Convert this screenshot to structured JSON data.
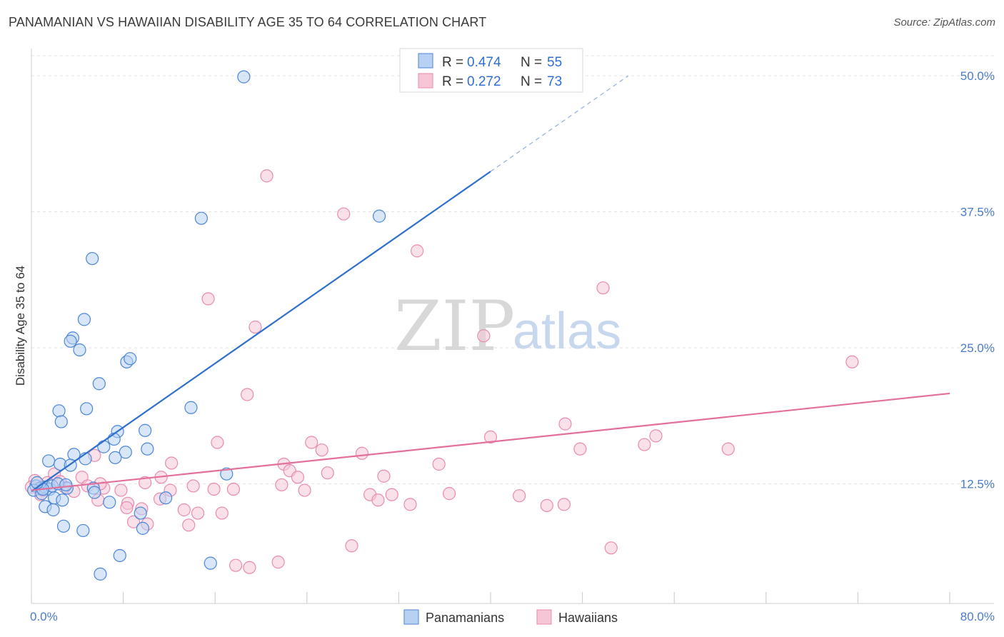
{
  "header": {
    "title": "PANAMANIAN VS HAWAIIAN DISABILITY AGE 35 TO 64 CORRELATION CHART",
    "source": "Source: ZipAtlas.com"
  },
  "watermark": {
    "zip": "ZIP",
    "atlas": "atlas"
  },
  "colors": {
    "blue": "#4a86d8",
    "blue_fill": "#b8d1f2",
    "blue_line": "#2f6fcc",
    "pink": "#e98ab0",
    "pink_fill": "#f6c6d6",
    "pink_line": "#e36f9b",
    "grid": "#e2e2e2",
    "axis_text": "#4a7cc9"
  },
  "legend": {
    "rows": [
      {
        "r_label": "R =",
        "r_value": "0.474",
        "n_label": "N =",
        "n_value": "55"
      },
      {
        "r_label": "R =",
        "r_value": "0.272",
        "n_label": "N =",
        "n_value": "73"
      }
    ]
  },
  "bottom_legend": {
    "series1": "Panamanians",
    "series2": "Hawaiians"
  },
  "chart_data": {
    "type": "scatter",
    "title": "PANAMANIAN VS HAWAIIAN DISABILITY AGE 35 TO 64 CORRELATION CHART",
    "xlabel": "",
    "ylabel": "Disability Age 35 to 64",
    "xlim": [
      0,
      80
    ],
    "ylim": [
      1.5,
      52.5
    ],
    "x_tick_labels": [
      "0.0%",
      "80.0%"
    ],
    "x_minor_ticks": [
      0,
      8,
      16,
      24,
      32,
      40,
      48,
      56,
      64,
      72,
      80
    ],
    "y_ticks": [
      12.5,
      25.0,
      37.5,
      50.0
    ],
    "y_tick_labels": [
      "12.5%",
      "25.0%",
      "37.5%",
      "50.0%"
    ],
    "grid": true,
    "series": [
      {
        "name": "Panamanians",
        "R": 0.474,
        "N": 55,
        "trend": {
          "x0": 0,
          "y0": 11.8,
          "x1": 40,
          "y1": 41.2,
          "dash_to_x": 52,
          "dash_to_y": 50.0
        },
        "points": [
          [
            18.5,
            49.9
          ],
          [
            14.8,
            36.9
          ],
          [
            30.3,
            37.1
          ],
          [
            5.3,
            33.2
          ],
          [
            4.6,
            27.6
          ],
          [
            3.6,
            25.9
          ],
          [
            3.4,
            25.6
          ],
          [
            4.2,
            24.8
          ],
          [
            8.3,
            23.7
          ],
          [
            8.6,
            24.0
          ],
          [
            5.9,
            21.7
          ],
          [
            2.4,
            19.2
          ],
          [
            4.8,
            19.4
          ],
          [
            13.9,
            19.5
          ],
          [
            2.6,
            18.2
          ],
          [
            7.5,
            17.3
          ],
          [
            9.9,
            17.4
          ],
          [
            7.2,
            16.6
          ],
          [
            6.3,
            15.9
          ],
          [
            10.1,
            15.7
          ],
          [
            3.7,
            15.2
          ],
          [
            8.2,
            15.4
          ],
          [
            7.3,
            14.9
          ],
          [
            1.5,
            14.6
          ],
          [
            4.7,
            14.8
          ],
          [
            2.5,
            14.3
          ],
          [
            3.4,
            14.2
          ],
          [
            17.0,
            13.4
          ],
          [
            0.4,
            12.3
          ],
          [
            0.8,
            12.1
          ],
          [
            1.2,
            12.2
          ],
          [
            1.6,
            12.0
          ],
          [
            0.2,
            11.9
          ],
          [
            0.9,
            11.6
          ],
          [
            1.8,
            12.3
          ],
          [
            3.1,
            12.1
          ],
          [
            2.0,
            11.2
          ],
          [
            5.4,
            12.1
          ],
          [
            5.5,
            11.7
          ],
          [
            2.7,
            11.0
          ],
          [
            1.2,
            10.4
          ],
          [
            1.9,
            10.1
          ],
          [
            6.8,
            10.8
          ],
          [
            9.5,
            9.8
          ],
          [
            11.7,
            11.2
          ],
          [
            2.8,
            8.6
          ],
          [
            4.5,
            8.2
          ],
          [
            9.7,
            8.4
          ],
          [
            7.7,
            5.9
          ],
          [
            15.6,
            5.2
          ],
          [
            6.0,
            4.2
          ],
          [
            1.0,
            12.0
          ],
          [
            0.5,
            12.6
          ],
          [
            2.3,
            12.5
          ],
          [
            3.0,
            12.4
          ]
        ]
      },
      {
        "name": "Hawaiians",
        "R": 0.272,
        "N": 73,
        "trend": {
          "x0": 0,
          "y0": 11.9,
          "x1": 80,
          "y1": 20.8
        },
        "points": [
          [
            20.5,
            40.8
          ],
          [
            27.2,
            37.3
          ],
          [
            33.6,
            33.9
          ],
          [
            49.8,
            30.5
          ],
          [
            15.4,
            29.5
          ],
          [
            19.5,
            26.9
          ],
          [
            39.4,
            26.1
          ],
          [
            71.5,
            23.7
          ],
          [
            18.8,
            20.7
          ],
          [
            46.5,
            18.0
          ],
          [
            40.0,
            16.8
          ],
          [
            54.4,
            16.9
          ],
          [
            16.2,
            16.3
          ],
          [
            24.4,
            16.3
          ],
          [
            25.3,
            15.6
          ],
          [
            47.8,
            15.7
          ],
          [
            53.4,
            16.1
          ],
          [
            60.7,
            15.7
          ],
          [
            28.8,
            15.3
          ],
          [
            5.5,
            15.1
          ],
          [
            12.2,
            14.4
          ],
          [
            22.0,
            14.3
          ],
          [
            22.5,
            13.7
          ],
          [
            35.5,
            14.3
          ],
          [
            25.8,
            13.5
          ],
          [
            2.0,
            13.4
          ],
          [
            4.4,
            13.1
          ],
          [
            11.3,
            13.1
          ],
          [
            23.2,
            13.1
          ],
          [
            30.7,
            13.2
          ],
          [
            0.3,
            12.8
          ],
          [
            1.4,
            12.6
          ],
          [
            9.9,
            12.6
          ],
          [
            14.1,
            12.3
          ],
          [
            21.8,
            12.4
          ],
          [
            4.9,
            12.3
          ],
          [
            6.3,
            12.1
          ],
          [
            7.8,
            11.9
          ],
          [
            12.1,
            11.9
          ],
          [
            15.9,
            12.0
          ],
          [
            17.6,
            12.0
          ],
          [
            23.8,
            11.9
          ],
          [
            29.5,
            11.5
          ],
          [
            31.4,
            11.5
          ],
          [
            36.4,
            11.6
          ],
          [
            42.5,
            11.4
          ],
          [
            0.8,
            11.5
          ],
          [
            5.8,
            11.0
          ],
          [
            11.2,
            11.1
          ],
          [
            30.2,
            11.0
          ],
          [
            8.4,
            10.7
          ],
          [
            8.3,
            10.3
          ],
          [
            9.6,
            10.2
          ],
          [
            13.3,
            10.1
          ],
          [
            14.5,
            9.8
          ],
          [
            33.0,
            10.6
          ],
          [
            44.9,
            10.5
          ],
          [
            46.4,
            10.6
          ],
          [
            16.6,
            9.8
          ],
          [
            8.9,
            9.0
          ],
          [
            10.1,
            8.8
          ],
          [
            13.7,
            8.7
          ],
          [
            27.9,
            6.8
          ],
          [
            50.5,
            6.6
          ],
          [
            21.5,
            5.3
          ],
          [
            17.8,
            5.0
          ],
          [
            19.0,
            4.8
          ],
          [
            2.9,
            12.2
          ],
          [
            6.0,
            12.5
          ],
          [
            1.0,
            11.9
          ],
          [
            0.0,
            12.2
          ],
          [
            3.7,
            11.8
          ],
          [
            2.5,
            12.7
          ]
        ]
      }
    ]
  }
}
